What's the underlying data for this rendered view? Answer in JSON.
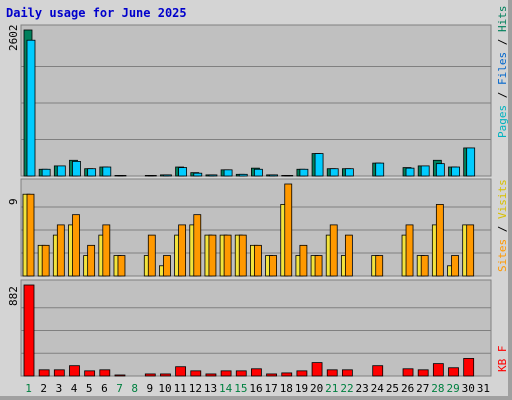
{
  "title": "Daily usage for June 2025",
  "colors": {
    "hits": "#00805c",
    "files": "#00ccff",
    "pages": "#00b3c0",
    "visits": "#f3e33c",
    "sites": "#ff9900",
    "kbytes": "#ff0000",
    "panel_bg": "#c0c0c0",
    "weekend": "#008040",
    "weekday": "#000000"
  },
  "chart_data": {
    "type": "bar",
    "x": [
      "1",
      "2",
      "3",
      "4",
      "5",
      "6",
      "7",
      "8",
      "9",
      "10",
      "11",
      "12",
      "13",
      "14",
      "15",
      "16",
      "17",
      "18",
      "19",
      "20",
      "21",
      "22",
      "23",
      "24",
      "25",
      "26",
      "27",
      "28",
      "29",
      "30",
      "31"
    ],
    "weekend_days": [
      1,
      7,
      8,
      14,
      15,
      21,
      22,
      28,
      29
    ],
    "panels": [
      {
        "ylabel_max": "2602",
        "legend": [
          "Pages",
          "Files",
          "Hits"
        ],
        "ymax": 2602,
        "series": [
          {
            "name": "Hits",
            "values": [
              2602,
              120,
              180,
              280,
              130,
              160,
              10,
              0,
              10,
              20,
              160,
              60,
              20,
              110,
              30,
              140,
              20,
              10,
              120,
              400,
              130,
              130,
              0,
              230,
              0,
              150,
              180,
              280,
              160,
              500,
              0
            ]
          },
          {
            "name": "Files",
            "values": [
              2420,
              120,
              180,
              260,
              130,
              160,
              10,
              0,
              10,
              20,
              150,
              50,
              20,
              110,
              30,
              120,
              20,
              10,
              120,
              400,
              130,
              130,
              0,
              230,
              0,
              140,
              180,
              220,
              160,
              500,
              0
            ]
          },
          {
            "name": "Pages",
            "values": [
              0,
              0,
              0,
              0,
              0,
              0,
              0,
              0,
              0,
              0,
              0,
              0,
              0,
              0,
              0,
              0,
              0,
              0,
              0,
              0,
              0,
              0,
              0,
              0,
              0,
              0,
              0,
              0,
              0,
              0,
              0
            ]
          }
        ]
      },
      {
        "ylabel_max": "9",
        "legend": [
          "Sites",
          "Visits"
        ],
        "ymax": 9,
        "series": [
          {
            "name": "Visits",
            "values": [
              8,
              3,
              4,
              5,
              2,
              4,
              2,
              0,
              2,
              1,
              4,
              5,
              4,
              4,
              4,
              3,
              2,
              7,
              2,
              2,
              4,
              2,
              0,
              2,
              0,
              4,
              2,
              5,
              1,
              5,
              0
            ]
          },
          {
            "name": "Sites",
            "values": [
              8,
              3,
              5,
              6,
              3,
              5,
              2,
              0,
              4,
              2,
              5,
              6,
              4,
              4,
              4,
              3,
              2,
              9,
              3,
              2,
              5,
              4,
              0,
              2,
              0,
              5,
              2,
              7,
              2,
              5,
              0
            ]
          }
        ]
      },
      {
        "ylabel_max": "882",
        "legend": [
          "KB F"
        ],
        "ymax": 882,
        "series": [
          {
            "name": "KB F",
            "values": [
              882,
              60,
              60,
              100,
              50,
              60,
              10,
              0,
              20,
              20,
              90,
              50,
              20,
              50,
              50,
              70,
              20,
              30,
              50,
              130,
              60,
              60,
              0,
              100,
              0,
              70,
              60,
              120,
              80,
              170,
              0
            ]
          }
        ]
      }
    ]
  }
}
